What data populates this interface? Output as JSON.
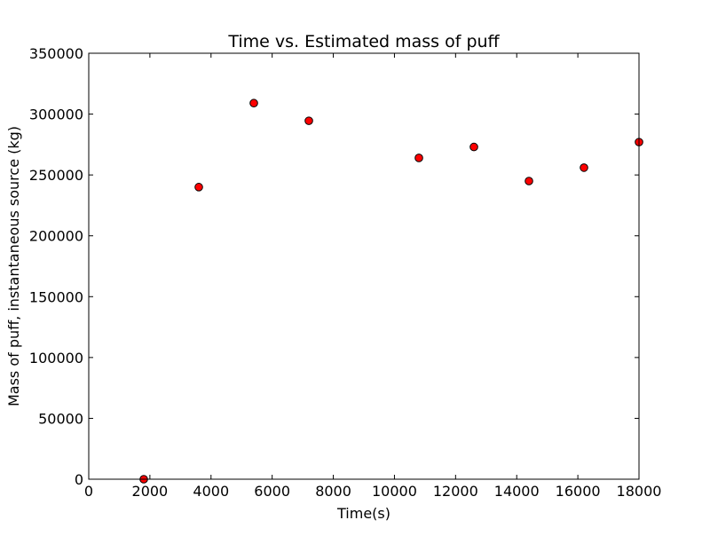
{
  "chart_data": {
    "type": "scatter",
    "title": "Time vs. Estimated mass of puff",
    "xlabel": "Time(s)",
    "ylabel": "Mass of puff, instantaneous source (kg)",
    "xlim": [
      0,
      18000
    ],
    "ylim": [
      0,
      350000
    ],
    "xticks": [
      0,
      2000,
      4000,
      6000,
      8000,
      10000,
      12000,
      14000,
      16000,
      18000
    ],
    "yticks": [
      0,
      50000,
      100000,
      150000,
      200000,
      250000,
      300000,
      350000
    ],
    "grid": false,
    "legend": "none",
    "series": [
      {
        "marker": "circle",
        "color": "#ff0000",
        "edgecolor": "#000000",
        "points": [
          {
            "x": 1800,
            "y": 0
          },
          {
            "x": 3600,
            "y": 240000
          },
          {
            "x": 5400,
            "y": 309000
          },
          {
            "x": 7200,
            "y": 294500
          },
          {
            "x": 10800,
            "y": 264000
          },
          {
            "x": 12600,
            "y": 273000
          },
          {
            "x": 14400,
            "y": 245000
          },
          {
            "x": 16200,
            "y": 256000
          },
          {
            "x": 18000,
            "y": 277000
          }
        ]
      }
    ]
  }
}
